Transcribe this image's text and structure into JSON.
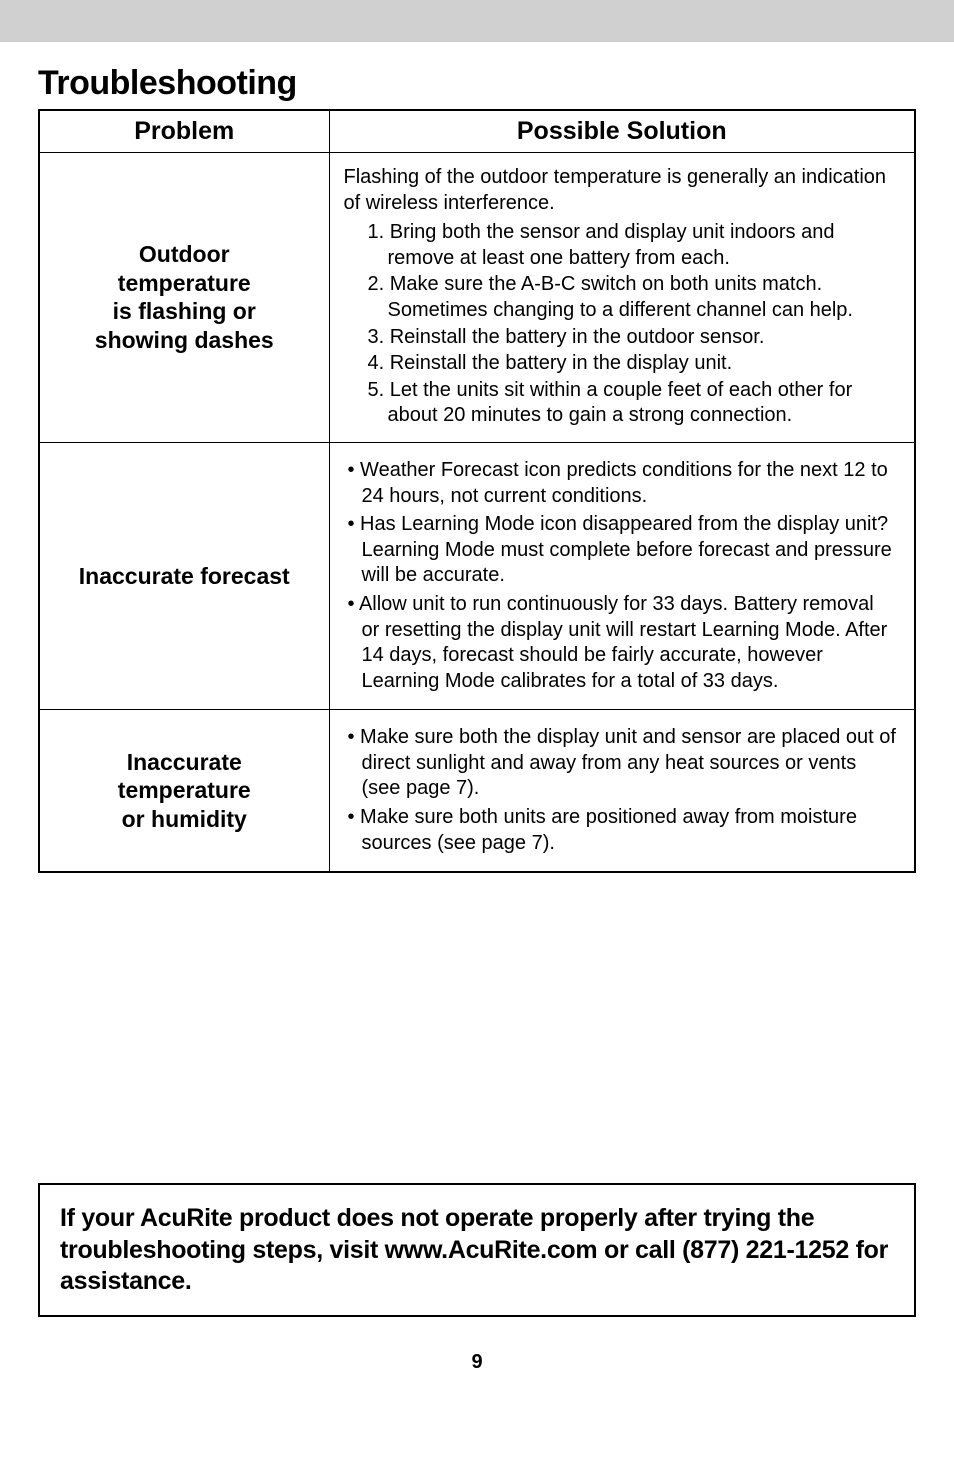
{
  "title": "Troubleshooting",
  "table": {
    "header_problem": "Problem",
    "header_solution": "Possible Solution",
    "rows": [
      {
        "problem": "Outdoor\ntemperature\nis flashing or\nshowing dashes",
        "intro": "Flashing of the outdoor temperature is generally an indication of wireless interference.",
        "ordered": [
          "1. Bring both the sensor and display unit indoors and remove at least one battery from each.",
          "2. Make sure the A-B-C switch on both units match. Sometimes changing to a different channel can help.",
          "3. Reinstall the battery in the outdoor sensor.",
          "4. Reinstall the battery in the display unit.",
          "5. Let the units sit within a couple feet of each other for about 20 minutes to gain a strong connection."
        ]
      },
      {
        "problem": "Inaccurate forecast",
        "bullets": [
          "• Weather Forecast icon predicts conditions for the next 12 to 24 hours, not current conditions.",
          "• Has Learning Mode icon disappeared from the display unit? Learning Mode must complete before forecast and pressure will be accurate.",
          "• Allow unit to run continuously for 33 days. Battery removal or resetting the display unit will restart Learning Mode. After 14 days, forecast should be fairly accurate, however Learning Mode calibrates for a total of 33 days."
        ]
      },
      {
        "problem": "Inaccurate\ntemperature\nor humidity",
        "bullets": [
          "• Make sure both the display unit and sensor are placed out of direct sunlight and away from any heat sources or vents (see page 7).",
          "• Make sure both units are positioned away from moisture sources (see page 7)."
        ]
      }
    ]
  },
  "footer": "If your AcuRite product does not operate properly after trying the troubleshooting steps, visit www.AcuRite.com or call (877) 221-1252 for assistance.",
  "page_num": "9"
}
